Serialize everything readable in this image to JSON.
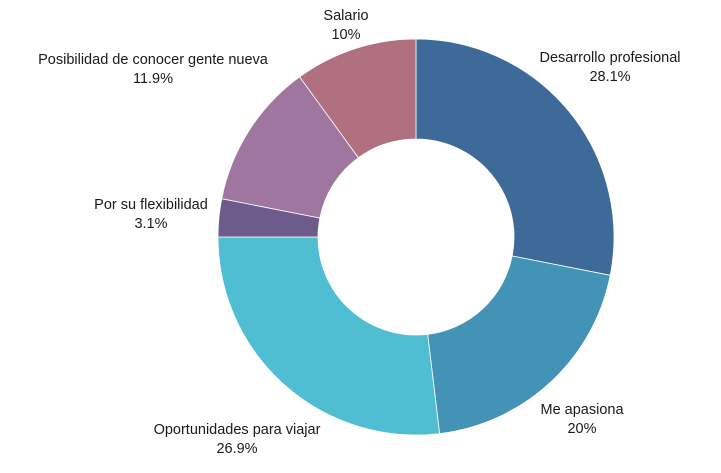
{
  "chart_data": {
    "type": "pie",
    "donut": true,
    "categories": [
      "Desarrollo profesional",
      "Me apasiona",
      "Oportunidades para viajar",
      "Por su flexibilidad",
      "Posibilidad de conocer gente nueva",
      "Salario"
    ],
    "values": [
      28.1,
      20,
      26.9,
      3.1,
      11.9,
      10
    ],
    "value_labels": [
      "28.1%",
      "20%",
      "26.9%",
      "3.1%",
      "11.9%",
      "10%"
    ],
    "colors": [
      "#3d6a98",
      "#4393b6",
      "#4fbed3",
      "#6d5c8b",
      "#9f76a0",
      "#b07080"
    ],
    "legend": "none",
    "title": ""
  }
}
